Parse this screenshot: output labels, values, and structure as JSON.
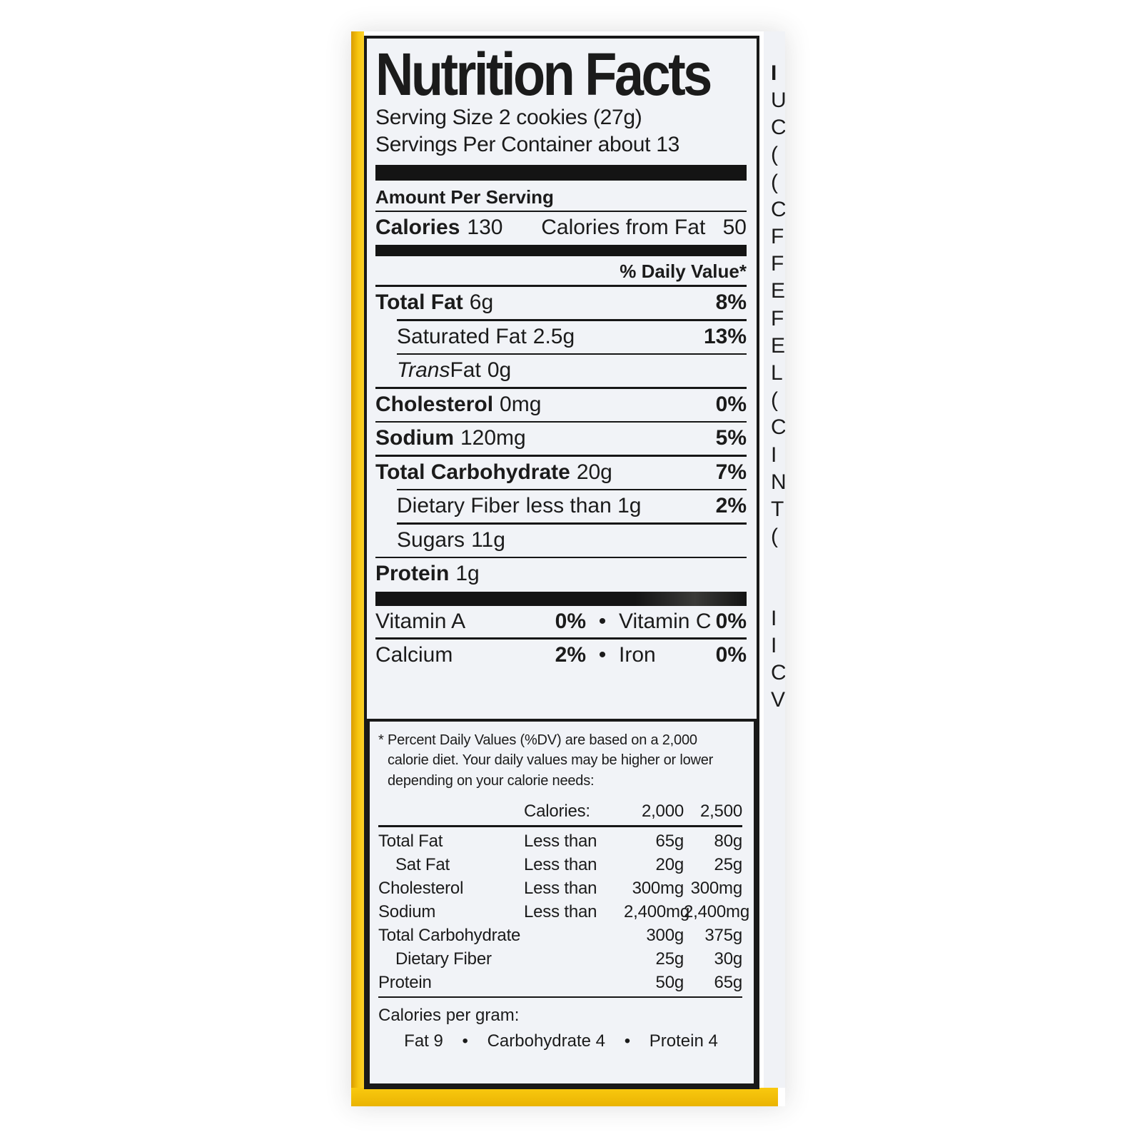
{
  "label": {
    "title": "Nutrition Facts",
    "serving_size": "Serving Size 2 cookies (27g)",
    "servings_per_container": "Servings Per Container about 13",
    "amount_per_serving": "Amount Per Serving",
    "calories": {
      "label": "Calories",
      "value": "130",
      "from_fat_label": "Calories from Fat",
      "from_fat_value": "50"
    },
    "daily_value_header": "% Daily Value*",
    "nutrients": [
      {
        "name": "Total Fat",
        "amount": "6g",
        "dv": "8%"
      },
      {
        "name": "Saturated Fat",
        "amount": "2.5g",
        "dv": "13%"
      },
      {
        "name_italic": "Trans",
        "name": " Fat",
        "amount": "0g",
        "dv": ""
      },
      {
        "name": "Cholesterol",
        "amount": "0mg",
        "dv": "0%"
      },
      {
        "name": "Sodium",
        "amount": "120mg",
        "dv": "5%"
      },
      {
        "name": "Total Carbohydrate",
        "amount": "20g",
        "dv": "7%"
      },
      {
        "name": "Dietary Fiber",
        "amount": "less than 1g",
        "dv": "2%"
      },
      {
        "name": "Sugars",
        "amount": "11g",
        "dv": ""
      },
      {
        "name": "Protein",
        "amount": "1g",
        "dv": ""
      }
    ],
    "vitamins": [
      {
        "left_name": "Vitamin A",
        "left_value": "0%",
        "bullet": "•",
        "right_name": "Vitamin C",
        "right_value": "0%"
      },
      {
        "left_name": "Calcium",
        "left_value": "2%",
        "bullet": "•",
        "right_name": "Iron",
        "right_value": "0%"
      }
    ],
    "footnote": {
      "asterisk": "*",
      "line1": "Percent Daily Values (%DV) are based on a 2,000",
      "line2": "calorie diet. Your daily values may be higher or lower",
      "line3": "depending on your calorie needs:",
      "table": {
        "header_label": "Calories:",
        "header_col1": "2,000",
        "header_col2": "2,500",
        "rows": [
          {
            "name": "Total Fat",
            "qualifier": "Less than",
            "col1": "65g",
            "col2": "80g"
          },
          {
            "name": "Sat Fat",
            "qualifier": "Less than",
            "col1": "20g",
            "col2": "25g"
          },
          {
            "name": "Cholesterol",
            "qualifier": "Less than",
            "col1": "300mg",
            "col2": "300mg"
          },
          {
            "name": "Sodium",
            "qualifier": "Less than",
            "col1": "2,400mg",
            "col2": "2,400mg"
          },
          {
            "name": "Total Carbohydrate",
            "qualifier": "",
            "col1": "300g",
            "col2": "375g"
          },
          {
            "name": "Dietary Fiber",
            "qualifier": "",
            "col1": "25g",
            "col2": "30g"
          },
          {
            "name": "Protein",
            "qualifier": "",
            "col1": "50g",
            "col2": "65g"
          }
        ]
      },
      "calories_per_gram_label": "Calories per gram:",
      "calories_per_gram_line": "Fat 9    •    Carbohydrate 4    •    Protein 4"
    }
  },
  "ingredients_edge": {
    "heading_fragment": "I",
    "line_fragments": "U\nC\n(\n(\nC\nF\nF\nE\nF\nE\nL\n(\nC\nI\nN\nT\n(\n\n\nI\nI\nC\nV"
  },
  "colors": {
    "package_yellow": "#F8C60E",
    "label_paper": "#F1F3F7",
    "ink": "#1B1B1B"
  }
}
